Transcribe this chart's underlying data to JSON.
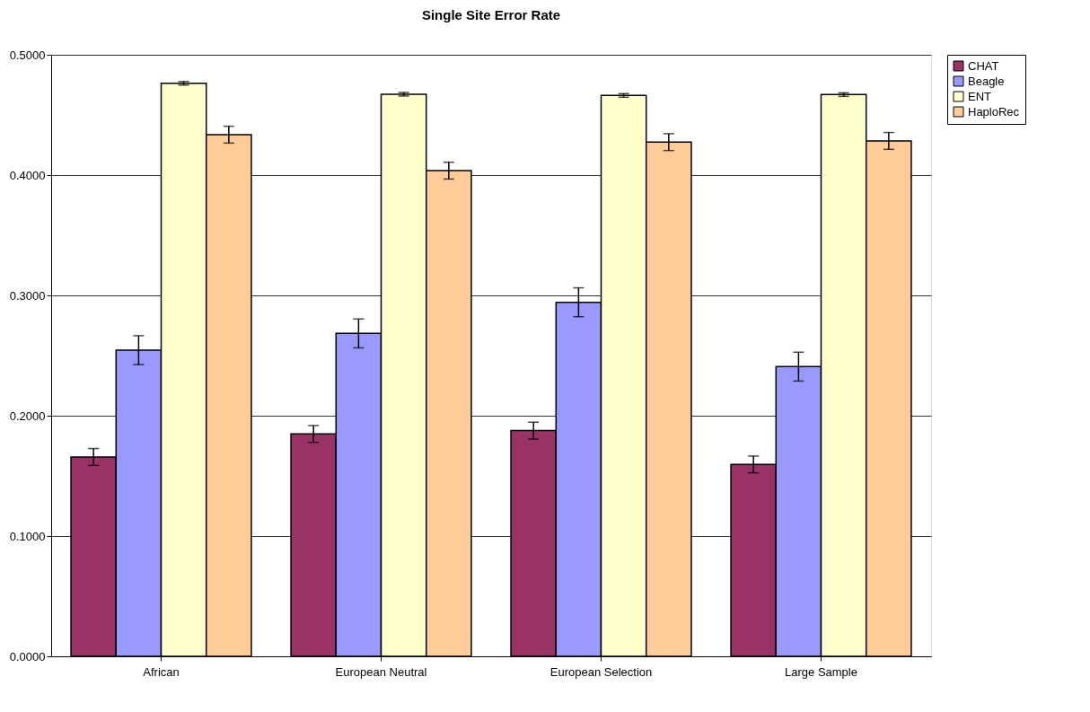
{
  "chart_data": {
    "type": "bar",
    "title": "Single Site Error Rate",
    "categories": [
      "African",
      "European Neutral",
      "European Selection",
      "Large Sample"
    ],
    "series": [
      {
        "name": "CHAT",
        "color": "#993366",
        "values": [
          0.1657,
          0.1848,
          0.1876,
          0.1595
        ],
        "errors": [
          0.007,
          0.007,
          0.007,
          0.007
        ]
      },
      {
        "name": "Beagle",
        "color": "#9999ff",
        "values": [
          0.2545,
          0.2684,
          0.2943,
          0.2408
        ],
        "errors": [
          0.012,
          0.012,
          0.012,
          0.012
        ]
      },
      {
        "name": "ENT",
        "color": "#ffffcc",
        "values": [
          0.4763,
          0.4672,
          0.4662,
          0.4669
        ],
        "errors": [
          0.0015,
          0.0015,
          0.0015,
          0.0015
        ]
      },
      {
        "name": "HaploRec",
        "color": "#ffcc99",
        "values": [
          0.4336,
          0.4037,
          0.4274,
          0.4284
        ],
        "errors": [
          0.007,
          0.007,
          0.007,
          0.007
        ]
      }
    ],
    "ylim": [
      0,
      0.5
    ],
    "yticks": [
      {
        "value": 0,
        "label": "0.0000"
      },
      {
        "value": 0.1,
        "label": "0.1000"
      },
      {
        "value": 0.2,
        "label": "0.2000"
      },
      {
        "value": 0.3,
        "label": "0.3000"
      },
      {
        "value": 0.4,
        "label": "0.4000"
      },
      {
        "value": 0.5,
        "label": "0.5000"
      }
    ],
    "grid": "y",
    "legend": "right"
  }
}
